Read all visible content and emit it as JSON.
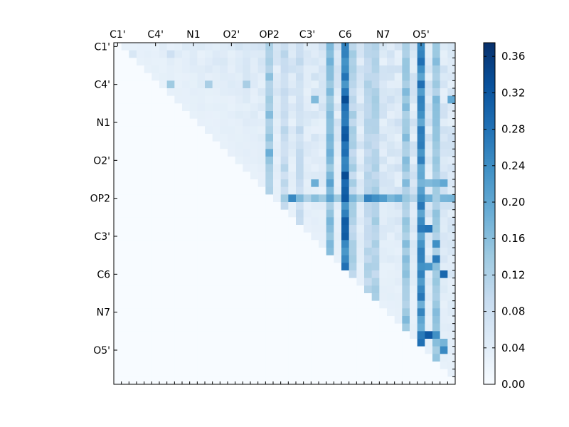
{
  "chart_data": {
    "type": "heatmap",
    "title": "",
    "xlabel": "",
    "ylabel": "",
    "grid": false,
    "x_tick_labels": [
      "C1'",
      "C4'",
      "N1",
      "O2'",
      "OP2",
      "C3'",
      "C6",
      "N7",
      "O5'"
    ],
    "y_tick_labels": [
      "C1'",
      "C4'",
      "N1",
      "O2'",
      "OP2",
      "C3'",
      "C6",
      "N7",
      "O5'"
    ],
    "matrix_size": 45,
    "upper_triangle_only": true,
    "value_range": [
      0.0,
      0.38
    ],
    "colormap": "Blues",
    "colormap_low": "#f7fbff",
    "colormap_high": "#08306b",
    "colorbar": {
      "placement": "right",
      "ticks": [
        "0.00",
        "0.04",
        "0.08",
        "0.12",
        "0.16",
        "0.20",
        "0.24",
        "0.28",
        "0.32",
        "0.36"
      ],
      "range": [
        0.0,
        0.375
      ]
    },
    "background_value": 0.0,
    "base_upper_value": 0.03,
    "column_values": [
      {
        "col": 20,
        "value": 0.15
      },
      {
        "col": 22,
        "value": 0.1
      },
      {
        "col": 24,
        "value": 0.09
      },
      {
        "col": 28,
        "value": 0.17
      },
      {
        "col": 30,
        "value": 0.3
      },
      {
        "col": 31,
        "value": 0.12
      },
      {
        "col": 33,
        "value": 0.11
      },
      {
        "col": 34,
        "value": 0.12
      },
      {
        "col": 38,
        "value": 0.15
      },
      {
        "col": 40,
        "value": 0.25
      },
      {
        "col": 42,
        "value": 0.15
      }
    ],
    "row_values": [
      {
        "row": 20,
        "from_col": 22,
        "value": 0.19
      },
      {
        "row": 27,
        "from_col": 30,
        "value": 0.04
      }
    ],
    "cell_values": [
      {
        "row": 1,
        "col": 2,
        "value": 0.06
      },
      {
        "row": 1,
        "col": 7,
        "value": 0.08
      },
      {
        "row": 5,
        "col": 7,
        "value": 0.14
      },
      {
        "row": 5,
        "col": 12,
        "value": 0.13
      },
      {
        "row": 5,
        "col": 17,
        "value": 0.13
      },
      {
        "row": 7,
        "col": 26,
        "value": 0.17
      },
      {
        "row": 8,
        "col": 42,
        "value": 0.16
      },
      {
        "row": 7,
        "col": 44,
        "value": 0.2
      },
      {
        "row": 14,
        "col": 20,
        "value": 0.19
      },
      {
        "row": 18,
        "col": 40,
        "value": 0.18
      },
      {
        "row": 18,
        "col": 41,
        "value": 0.17
      },
      {
        "row": 18,
        "col": 42,
        "value": 0.18
      },
      {
        "row": 18,
        "col": 43,
        "value": 0.2
      },
      {
        "row": 18,
        "col": 26,
        "value": 0.19
      },
      {
        "row": 18,
        "col": 28,
        "value": 0.21
      },
      {
        "row": 20,
        "col": 23,
        "value": 0.25
      },
      {
        "row": 20,
        "col": 33,
        "value": 0.26
      },
      {
        "row": 20,
        "col": 34,
        "value": 0.24
      },
      {
        "row": 20,
        "col": 35,
        "value": 0.22
      },
      {
        "row": 24,
        "col": 41,
        "value": 0.28
      },
      {
        "row": 26,
        "col": 42,
        "value": 0.24
      },
      {
        "row": 28,
        "col": 42,
        "value": 0.27
      },
      {
        "row": 29,
        "col": 41,
        "value": 0.23
      },
      {
        "row": 30,
        "col": 43,
        "value": 0.3
      },
      {
        "row": 38,
        "col": 41,
        "value": 0.32
      },
      {
        "row": 38,
        "col": 42,
        "value": 0.24
      },
      {
        "row": 39,
        "col": 43,
        "value": 0.18
      },
      {
        "row": 40,
        "col": 43,
        "value": 0.25
      }
    ]
  }
}
